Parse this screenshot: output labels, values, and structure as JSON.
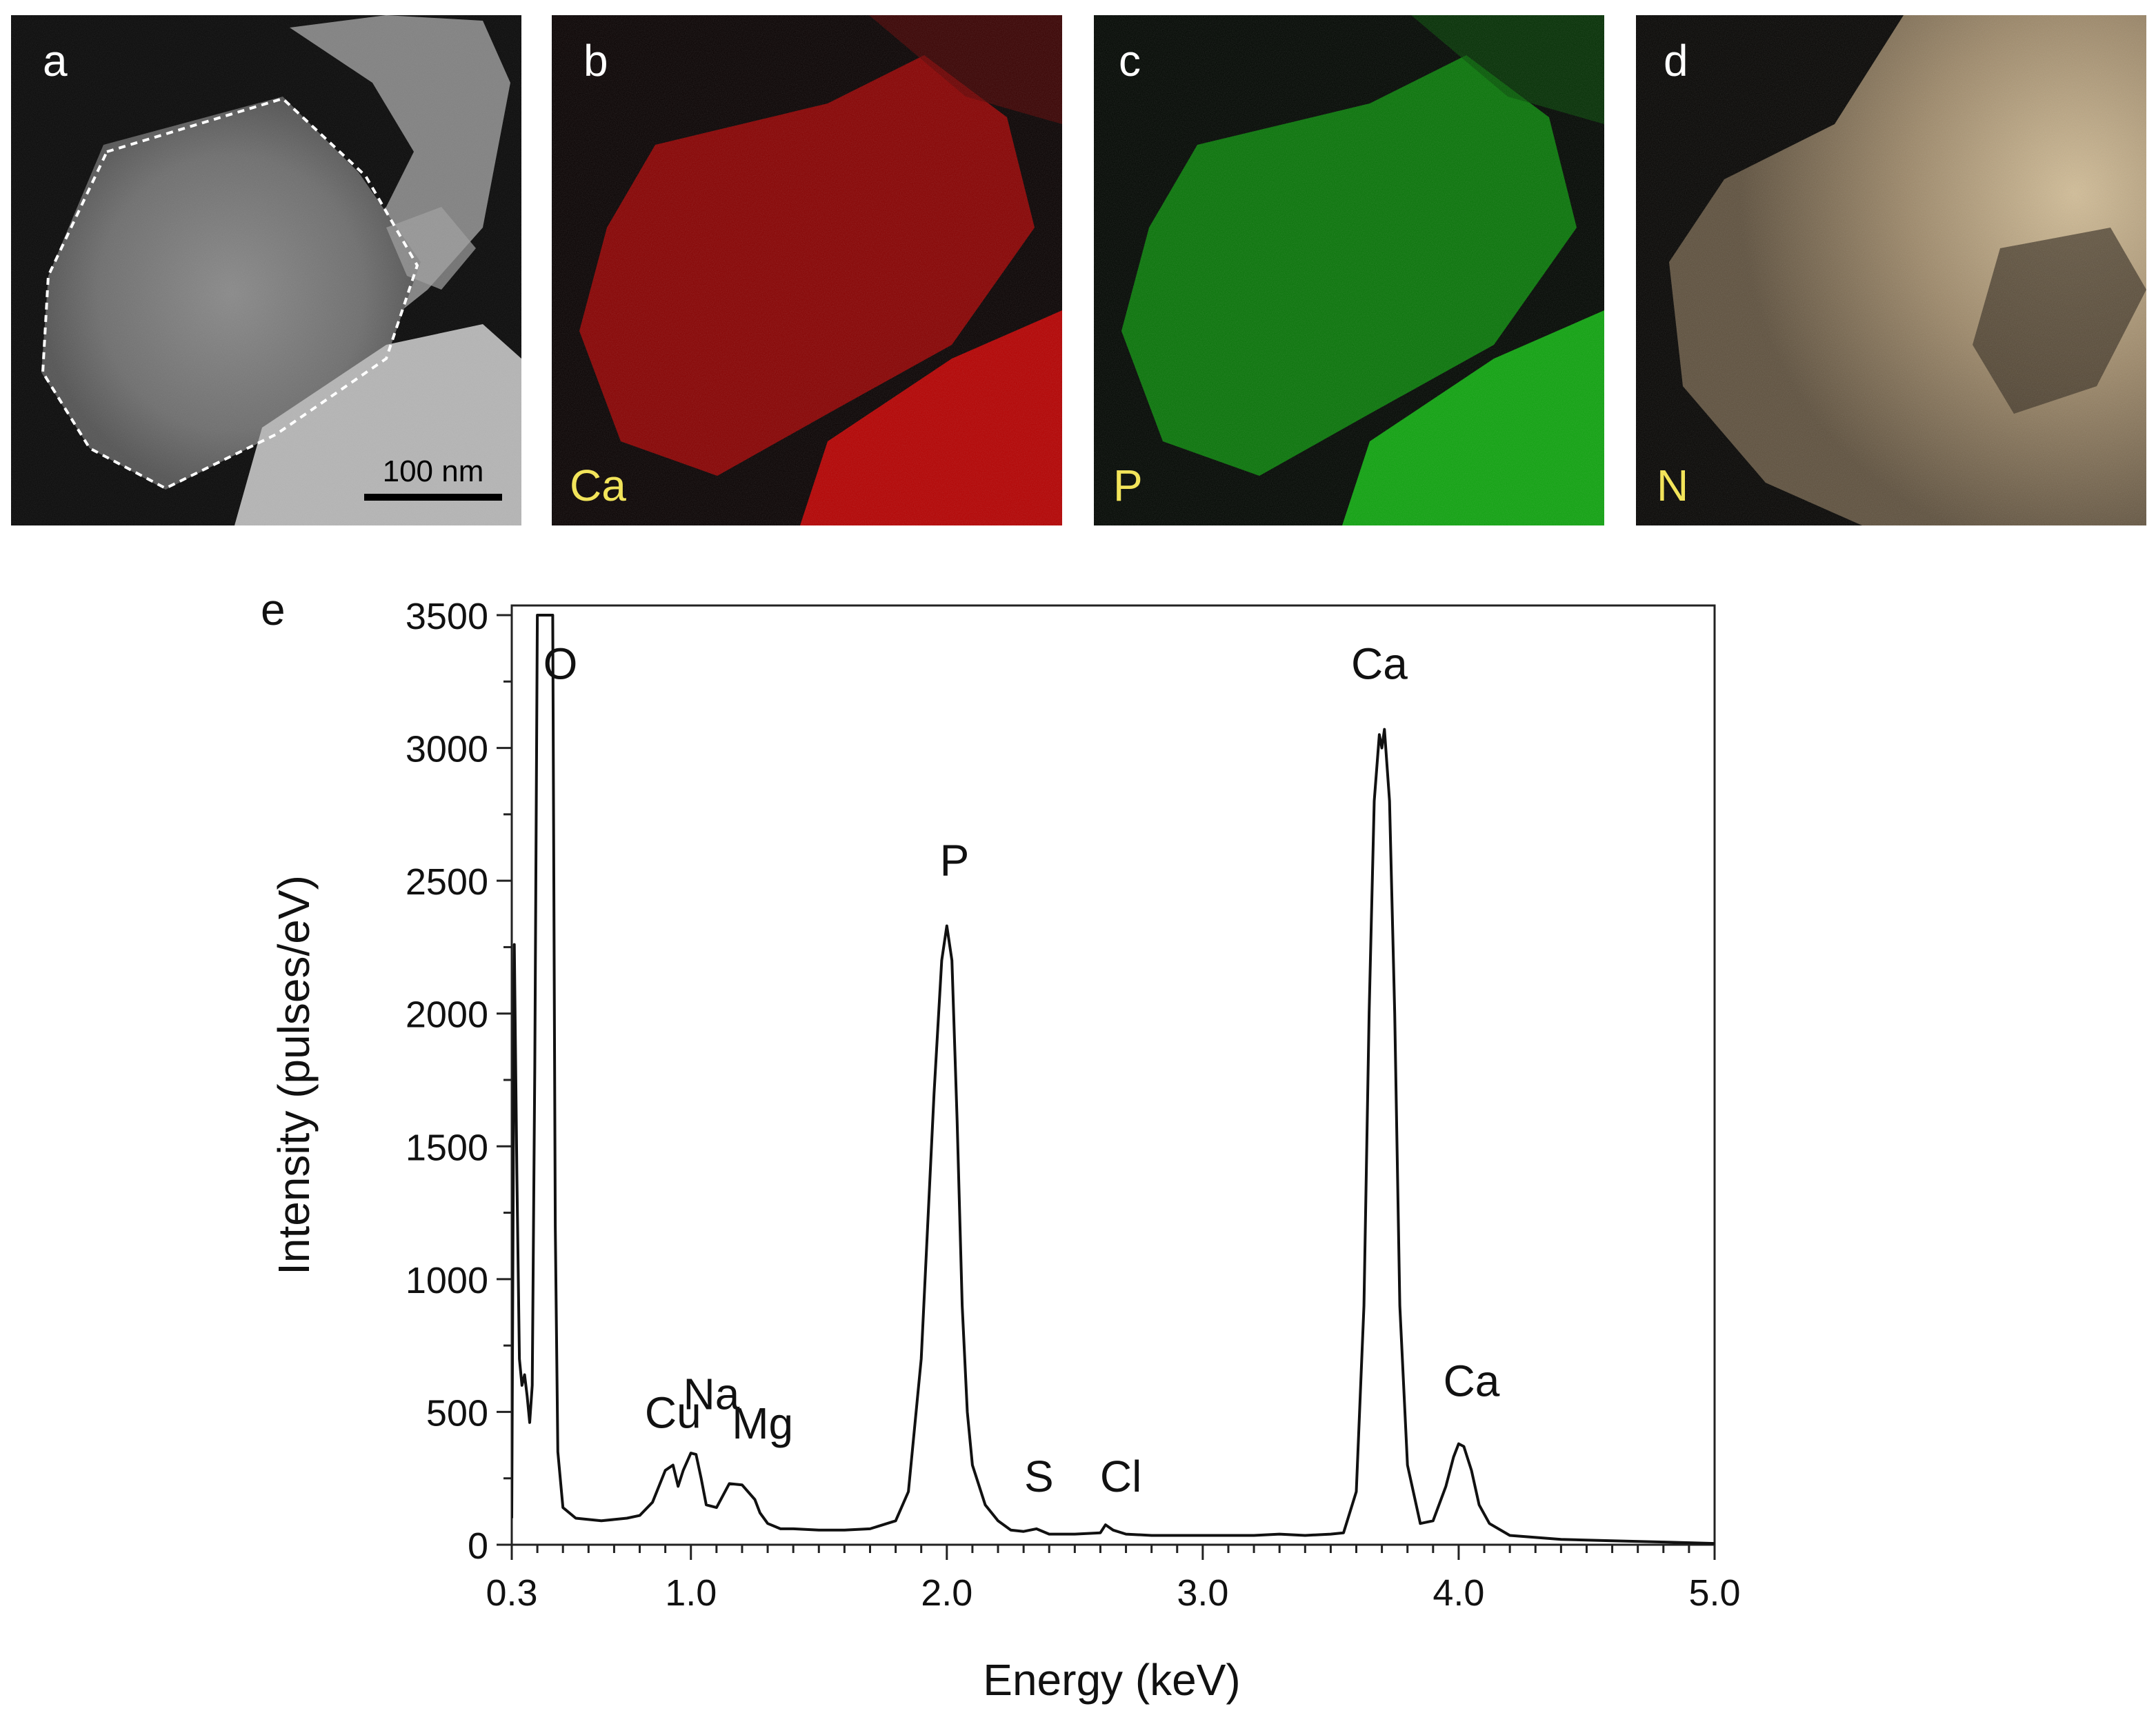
{
  "panels": [
    {
      "letter": "a",
      "element": "",
      "scale_bar": "100 nm",
      "colors": {
        "tint": "#ffffff"
      }
    },
    {
      "letter": "b",
      "element": "Ca",
      "colors": {
        "tint": "#e00000"
      }
    },
    {
      "letter": "c",
      "element": "P",
      "colors": {
        "tint": "#00d400"
      }
    },
    {
      "letter": "d",
      "element": "N",
      "colors": {
        "tint": "#fbe0b0"
      }
    }
  ],
  "label_color": "#f2e45a",
  "chart_data": {
    "type": "line",
    "panel_letter": "e",
    "title": "",
    "xlabel": "Energy (keV)",
    "ylabel": "Intensity (pulses/eV)",
    "xlim": [
      0.3,
      5.0
    ],
    "ylim": [
      0,
      3500
    ],
    "x_ticks": [
      0.3,
      1.0,
      2.0,
      3.0,
      4.0,
      5.0
    ],
    "x_tick_labels": [
      "0.3",
      "1.0",
      "2.0",
      "3.0",
      "4.0",
      "5.0"
    ],
    "y_ticks": [
      0,
      500,
      1000,
      1500,
      2000,
      2500,
      3000,
      3500
    ],
    "y_tick_labels": [
      "0",
      "500",
      "1000",
      "1500",
      "2000",
      "2500",
      "3000",
      "3500"
    ],
    "grid": false,
    "series": [
      {
        "x": [
          0.3,
          0.31,
          0.32,
          0.33,
          0.34,
          0.35,
          0.36,
          0.37,
          0.38,
          0.39,
          0.4,
          0.41,
          0.42,
          0.43,
          0.44,
          0.45,
          0.46,
          0.47,
          0.48,
          0.5,
          0.55,
          0.6,
          0.65,
          0.7,
          0.75,
          0.8,
          0.85,
          0.9,
          0.93,
          0.95,
          0.97,
          1.0,
          1.02,
          1.04,
          1.06,
          1.1,
          1.15,
          1.2,
          1.25,
          1.27,
          1.3,
          1.35,
          1.4,
          1.5,
          1.6,
          1.7,
          1.8,
          1.85,
          1.9,
          1.95,
          1.98,
          2.0,
          2.02,
          2.04,
          2.06,
          2.08,
          2.1,
          2.15,
          2.2,
          2.25,
          2.3,
          2.35,
          2.4,
          2.5,
          2.6,
          2.62,
          2.65,
          2.7,
          2.8,
          3.0,
          3.2,
          3.3,
          3.4,
          3.5,
          3.55,
          3.6,
          3.63,
          3.65,
          3.67,
          3.69,
          3.7,
          3.71,
          3.73,
          3.75,
          3.77,
          3.8,
          3.85,
          3.9,
          3.95,
          3.98,
          4.0,
          4.02,
          4.05,
          4.08,
          4.12,
          4.2,
          4.4,
          4.6,
          4.8,
          5.0
        ],
        "y": [
          100,
          2260,
          1400,
          700,
          600,
          640,
          560,
          460,
          600,
          1800,
          3500,
          3500,
          3500,
          3500,
          3500,
          3500,
          3500,
          1200,
          350,
          140,
          100,
          95,
          90,
          95,
          100,
          110,
          160,
          280,
          300,
          220,
          280,
          345,
          340,
          250,
          150,
          140,
          230,
          225,
          170,
          120,
          80,
          60,
          60,
          55,
          55,
          60,
          90,
          200,
          700,
          1700,
          2200,
          2330,
          2200,
          1600,
          900,
          500,
          300,
          150,
          90,
          55,
          50,
          60,
          40,
          40,
          45,
          75,
          55,
          40,
          35,
          35,
          35,
          40,
          35,
          40,
          45,
          200,
          900,
          2000,
          2800,
          3050,
          3000,
          3070,
          2800,
          2000,
          900,
          300,
          80,
          90,
          220,
          330,
          380,
          370,
          280,
          150,
          80,
          35,
          20,
          15,
          10,
          5
        ]
      }
    ],
    "annotations": [
      {
        "text": "O",
        "x": 0.49,
        "y": 3260
      },
      {
        "text": "Cu",
        "x": 0.93,
        "y": 440
      },
      {
        "text": "Na",
        "x": 1.08,
        "y": 510
      },
      {
        "text": "Mg",
        "x": 1.28,
        "y": 400
      },
      {
        "text": "P",
        "x": 2.03,
        "y": 2520
      },
      {
        "text": "S",
        "x": 2.36,
        "y": 200
      },
      {
        "text": "Cl",
        "x": 2.68,
        "y": 200
      },
      {
        "text": "Ca",
        "x": 3.69,
        "y": 3260
      },
      {
        "text": "Ca",
        "x": 4.05,
        "y": 560
      }
    ]
  }
}
